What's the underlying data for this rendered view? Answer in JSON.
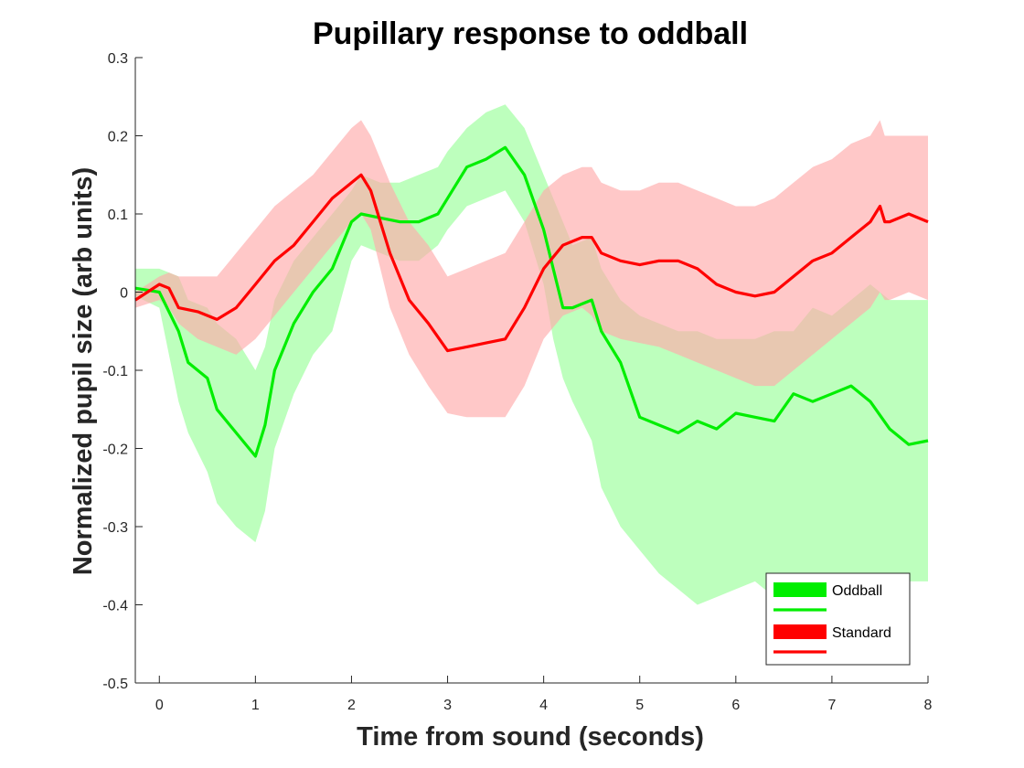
{
  "chart_data": {
    "type": "line",
    "title": "Pupillary response to oddball",
    "xlabel": "Time from sound (seconds)",
    "ylabel": "Normalized pupil size (arb units)",
    "xlim": [
      -0.25,
      8
    ],
    "ylim": [
      -0.5,
      0.3
    ],
    "xticks": [
      0,
      1,
      2,
      3,
      4,
      5,
      6,
      7,
      8
    ],
    "yticks": [
      -0.5,
      -0.4,
      -0.3,
      -0.2,
      -0.1,
      0,
      0.1,
      0.2,
      0.3
    ],
    "xtick_labels": [
      "0",
      "1",
      "2",
      "3",
      "4",
      "5",
      "6",
      "7",
      "8"
    ],
    "ytick_labels": [
      "-0.5",
      "-0.4",
      "-0.3",
      "-0.2",
      "-0.1",
      "0",
      "0.1",
      "0.2",
      "0.3"
    ],
    "grid": false,
    "legend_position": "bottom-right",
    "series": [
      {
        "name": "Oddball",
        "color": "#00ee00",
        "band_color": "#99ff99",
        "x": [
          -0.25,
          0.0,
          0.2,
          0.3,
          0.5,
          0.6,
          0.8,
          1.0,
          1.1,
          1.2,
          1.4,
          1.6,
          1.8,
          2.0,
          2.1,
          2.3,
          2.5,
          2.7,
          2.9,
          3.0,
          3.2,
          3.4,
          3.6,
          3.8,
          4.0,
          4.1,
          4.2,
          4.3,
          4.5,
          4.6,
          4.8,
          5.0,
          5.2,
          5.4,
          5.6,
          5.8,
          6.0,
          6.2,
          6.4,
          6.6,
          6.8,
          7.0,
          7.2,
          7.4,
          7.6,
          7.8,
          8.0
        ],
        "y": [
          0.005,
          0.0,
          -0.05,
          -0.09,
          -0.11,
          -0.15,
          -0.18,
          -0.21,
          -0.17,
          -0.1,
          -0.04,
          0.0,
          0.03,
          0.09,
          0.1,
          0.095,
          0.09,
          0.09,
          0.1,
          0.12,
          0.16,
          0.17,
          0.185,
          0.15,
          0.08,
          0.03,
          -0.02,
          -0.02,
          -0.01,
          -0.05,
          -0.09,
          -0.16,
          -0.17,
          -0.18,
          -0.165,
          -0.175,
          -0.155,
          -0.16,
          -0.165,
          -0.13,
          -0.14,
          -0.13,
          -0.12,
          -0.14,
          -0.175,
          -0.195,
          -0.19
        ],
        "lower": [
          -0.005,
          -0.02,
          -0.14,
          -0.18,
          -0.23,
          -0.27,
          -0.3,
          -0.32,
          -0.28,
          -0.2,
          -0.13,
          -0.08,
          -0.05,
          0.04,
          0.06,
          0.05,
          0.04,
          0.04,
          0.06,
          0.08,
          0.11,
          0.12,
          0.13,
          0.09,
          0.01,
          -0.06,
          -0.11,
          -0.14,
          -0.19,
          -0.25,
          -0.3,
          -0.33,
          -0.36,
          -0.38,
          -0.4,
          -0.39,
          -0.38,
          -0.37,
          -0.39,
          -0.38,
          -0.39,
          -0.39,
          -0.37,
          -0.38,
          -0.38,
          -0.37,
          -0.37
        ],
        "upper": [
          0.03,
          0.03,
          0.02,
          -0.01,
          -0.02,
          -0.04,
          -0.06,
          -0.1,
          -0.07,
          -0.01,
          0.04,
          0.07,
          0.1,
          0.13,
          0.15,
          0.14,
          0.14,
          0.15,
          0.16,
          0.18,
          0.21,
          0.23,
          0.24,
          0.21,
          0.15,
          0.12,
          0.09,
          0.06,
          0.07,
          0.03,
          -0.01,
          -0.03,
          -0.04,
          -0.05,
          -0.05,
          -0.06,
          -0.06,
          -0.06,
          -0.05,
          -0.05,
          -0.02,
          -0.03,
          -0.01,
          0.01,
          -0.01,
          -0.01,
          -0.01
        ]
      },
      {
        "name": "Standard",
        "color": "#ff0000",
        "band_color": "#ffaaaa",
        "x": [
          -0.25,
          0.0,
          0.1,
          0.2,
          0.4,
          0.6,
          0.8,
          1.0,
          1.2,
          1.4,
          1.6,
          1.8,
          2.0,
          2.1,
          2.2,
          2.3,
          2.4,
          2.6,
          2.8,
          3.0,
          3.2,
          3.4,
          3.6,
          3.8,
          4.0,
          4.2,
          4.4,
          4.5,
          4.6,
          4.8,
          5.0,
          5.2,
          5.4,
          5.6,
          5.8,
          6.0,
          6.2,
          6.4,
          6.6,
          6.8,
          7.0,
          7.2,
          7.4,
          7.5,
          7.55,
          7.6,
          7.8,
          8.0
        ],
        "y": [
          -0.01,
          0.01,
          0.005,
          -0.02,
          -0.025,
          -0.035,
          -0.02,
          0.01,
          0.04,
          0.06,
          0.09,
          0.12,
          0.14,
          0.15,
          0.13,
          0.09,
          0.05,
          -0.01,
          -0.04,
          -0.075,
          -0.07,
          -0.065,
          -0.06,
          -0.02,
          0.03,
          0.06,
          0.07,
          0.07,
          0.05,
          0.04,
          0.035,
          0.04,
          0.04,
          0.03,
          0.01,
          0.0,
          -0.005,
          0.0,
          0.02,
          0.04,
          0.05,
          0.07,
          0.09,
          0.11,
          0.09,
          0.09,
          0.1,
          0.09
        ],
        "lower": [
          -0.02,
          -0.01,
          -0.02,
          -0.04,
          -0.06,
          -0.07,
          -0.08,
          -0.06,
          -0.03,
          0.0,
          0.03,
          0.06,
          0.09,
          0.1,
          0.08,
          0.03,
          -0.02,
          -0.08,
          -0.12,
          -0.155,
          -0.16,
          -0.16,
          -0.16,
          -0.12,
          -0.06,
          -0.03,
          -0.02,
          -0.03,
          -0.05,
          -0.06,
          -0.065,
          -0.07,
          -0.08,
          -0.09,
          -0.1,
          -0.11,
          -0.12,
          -0.12,
          -0.1,
          -0.08,
          -0.06,
          -0.04,
          -0.02,
          0.0,
          -0.01,
          -0.01,
          0.0,
          -0.01
        ],
        "upper": [
          0.0,
          0.02,
          0.025,
          0.02,
          0.02,
          0.02,
          0.05,
          0.08,
          0.11,
          0.13,
          0.15,
          0.18,
          0.21,
          0.22,
          0.2,
          0.17,
          0.14,
          0.09,
          0.06,
          0.02,
          0.03,
          0.04,
          0.05,
          0.09,
          0.13,
          0.15,
          0.16,
          0.16,
          0.14,
          0.13,
          0.13,
          0.14,
          0.14,
          0.13,
          0.12,
          0.11,
          0.11,
          0.12,
          0.14,
          0.16,
          0.17,
          0.19,
          0.2,
          0.22,
          0.2,
          0.2,
          0.2,
          0.2
        ]
      }
    ]
  }
}
